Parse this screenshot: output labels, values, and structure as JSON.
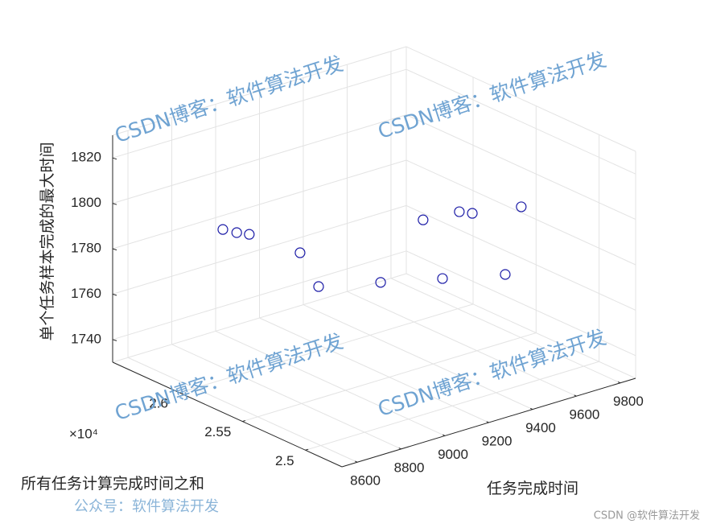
{
  "chart_data": {
    "type": "scatter3d",
    "xlabel": "任务完成时间",
    "ylabel": "所有任务计算完成时间之和",
    "zlabel": "单个任务样本完成的最大时间",
    "y_multiplier": "×10⁴",
    "x": [
      8719,
      8730,
      8735,
      8862,
      8842,
      9125,
      9528,
      9355,
      9641,
      9648,
      9589,
      9819
    ],
    "y": [
      25984,
      25893,
      25802,
      25620,
      25438,
      25438,
      25802,
      25347,
      25711,
      25620,
      25256,
      25529
    ],
    "z": [
      1796.8,
      1797.4,
      1798.8,
      1791.6,
      1781.9,
      1775.5,
      1782.1,
      1772.8,
      1784.7,
      1786.1,
      1770.1,
      1786.3
    ],
    "color": "#1a1aa6",
    "xlim": [
      8530,
      9870
    ],
    "ylim": [
      24710,
      26530
    ],
    "zlim": [
      1730,
      1830
    ],
    "xticks": [
      8600,
      8800,
      9000,
      9200,
      9400,
      9600,
      9800
    ],
    "yticks": [
      {
        "value": 25000,
        "label": "2.5"
      },
      {
        "value": 25500,
        "label": "2.55"
      },
      {
        "value": 26000,
        "label": "2.6"
      }
    ],
    "zticks": [
      1740,
      1760,
      1780,
      1800,
      1820
    ],
    "grid": true
  },
  "watermarks": [
    "CSDN博客：软件算法开发",
    "CSDN博客：软件算法开发",
    "CSDN博客：软件算法开发",
    "CSDN博客：软件算法开发",
    "公众号：软件算法开发",
    "CSDN @软件算法开发"
  ]
}
